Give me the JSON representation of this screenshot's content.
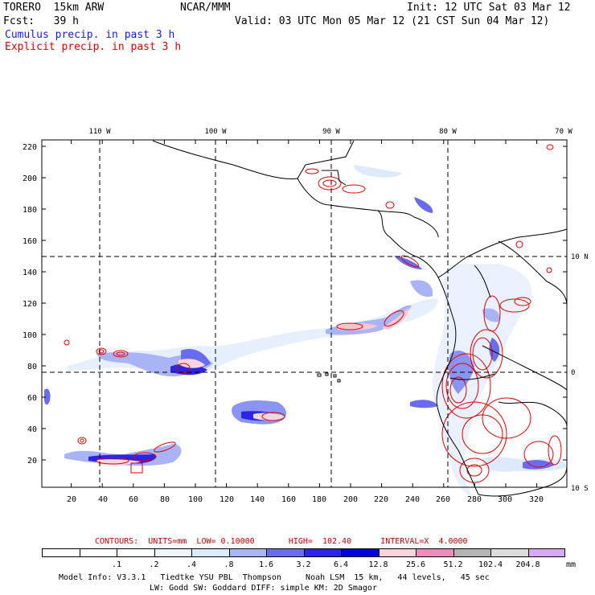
{
  "header": {
    "model": "TORERO  15km ARW",
    "org": "NCAR/MMM",
    "init": "Init: 12 UTC Sat 03 Mar 12",
    "fcst": "Fcst:   39 h",
    "valid": "Valid: 03 UTC Mon 05 Mar 12 (21 CST Sun 04 Mar 12)",
    "field1": "Cumulus precip. in past 3 h",
    "field2": "Explicit precip. in past 3 h"
  },
  "map": {
    "lon_labels": [
      "110 W",
      "100 W",
      "90 W",
      "80 W",
      "70 W"
    ],
    "lat_labels": [
      "10 N",
      "0",
      "10 S"
    ],
    "y_ticks": [
      "220",
      "200",
      "180",
      "160",
      "140",
      "120",
      "100",
      "80",
      "60",
      "40",
      "20"
    ],
    "x_ticks": [
      "20",
      "40",
      "60",
      "80",
      "100",
      "120",
      "140",
      "160",
      "180",
      "200",
      "220",
      "240",
      "260",
      "280",
      "300",
      "320"
    ]
  },
  "contours": {
    "text": "CONTOURS:  UNITS=mm  LOW= 0.10000       HIGH=  102.40      INTERVAL=X  4.0000"
  },
  "legend": {
    "labels": [
      ".1",
      ".2",
      ".4",
      ".8",
      "1.6",
      "3.2",
      "6.4",
      "12.8",
      "25.6",
      "51.2",
      "102.4",
      "204.8"
    ],
    "unit": "mm",
    "colors": [
      "#ffffff",
      "#ffffff",
      "#ffffff",
      "#f0f6fe",
      "#dceafc",
      "#a9b4f6",
      "#6a6cf0",
      "#2c24e8",
      "#0000e0",
      "#fcd4dc",
      "#f08cbc",
      "#b4b4b4",
      "#dcdcdc",
      "#d8a8f8"
    ]
  },
  "footer": {
    "line1": "Model Info: V3.3.1   Tiedtke YSU PBL  Thompson     Noah LSM  15 km,   44 levels,   45 sec",
    "line2": "LW: Godd SW: Goddard DIFF: simple KM: 2D Smagor"
  }
}
